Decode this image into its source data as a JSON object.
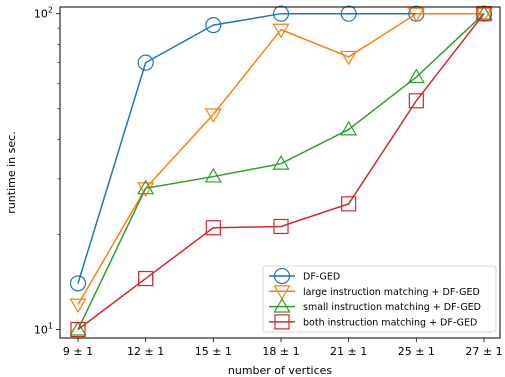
{
  "chart_data": {
    "type": "line",
    "title": "",
    "xlabel": "number of vertices",
    "ylabel": "runtime in sec.",
    "yscale": "log",
    "ylim": [
      9.4,
      105
    ],
    "yticks": [
      {
        "value": 10,
        "base": "10",
        "exp": "1"
      },
      {
        "value": 100,
        "base": "10",
        "exp": "2"
      }
    ],
    "categories": [
      "9 ± 1",
      "12 ± 1",
      "15 ± 1",
      "18 ± 1",
      "21 ± 1",
      "25 ± 1",
      "27 ± 1"
    ],
    "legend_position": "lower-right",
    "grid": false,
    "series": [
      {
        "name": "DF-GED",
        "color": "#1f77b4",
        "marker": "circle",
        "values": [
          14,
          70,
          92,
          100,
          100,
          100,
          100
        ]
      },
      {
        "name": "large instruction matching + DF-GED",
        "color": "#ff7f0e",
        "marker": "triangle-down",
        "values": [
          12,
          28,
          48,
          89,
          73,
          100,
          100
        ]
      },
      {
        "name": "small instruction matching + DF-GED",
        "color": "#2ca02c",
        "marker": "triangle-up",
        "values": [
          10,
          28,
          30.5,
          33.5,
          43,
          63,
          100
        ]
      },
      {
        "name": "both instruction matching + DF-GED",
        "color": "#d62728",
        "marker": "square",
        "values": [
          10,
          14.5,
          21,
          21.2,
          25,
          53,
          100
        ]
      }
    ]
  }
}
